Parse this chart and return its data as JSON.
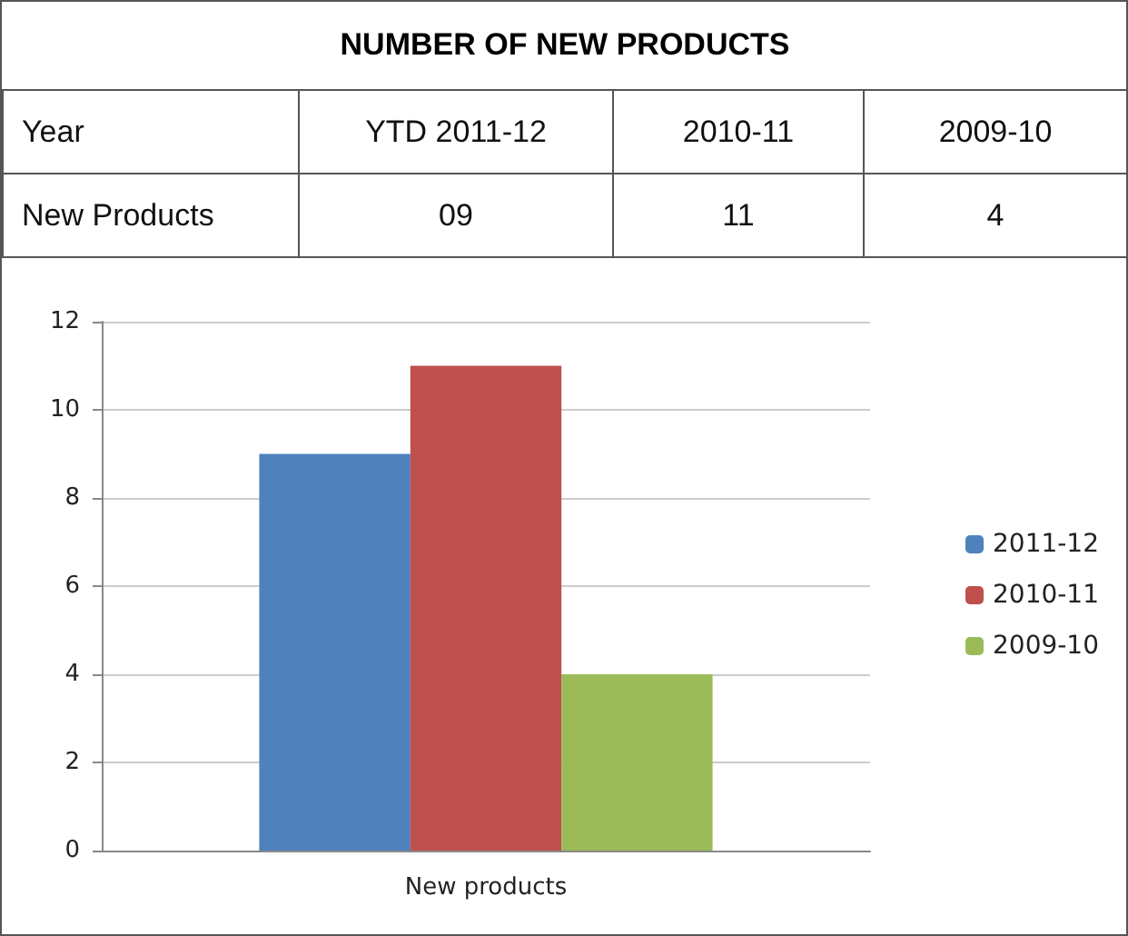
{
  "chart_data": {
    "type": "bar",
    "title": "NUMBER OF NEW PRODUCTS",
    "annotations": [
      "Year",
      "YTD 2011-12",
      "2010-11",
      "2009-10",
      "New Products",
      "09",
      "11",
      "4"
    ],
    "categories": [
      "New products"
    ],
    "series": [
      {
        "name": "2011-12",
        "color": "#4f81bd",
        "values": [
          9
        ]
      },
      {
        "name": "2010-11",
        "color": "#c0504d",
        "values": [
          11
        ]
      },
      {
        "name": "2009-10",
        "color": "#9bbb59",
        "values": [
          4
        ]
      }
    ],
    "ylim": [
      0,
      12
    ],
    "yticks": [
      0,
      2,
      4,
      6,
      8,
      10,
      12
    ],
    "grid": "y",
    "legend": "right"
  }
}
